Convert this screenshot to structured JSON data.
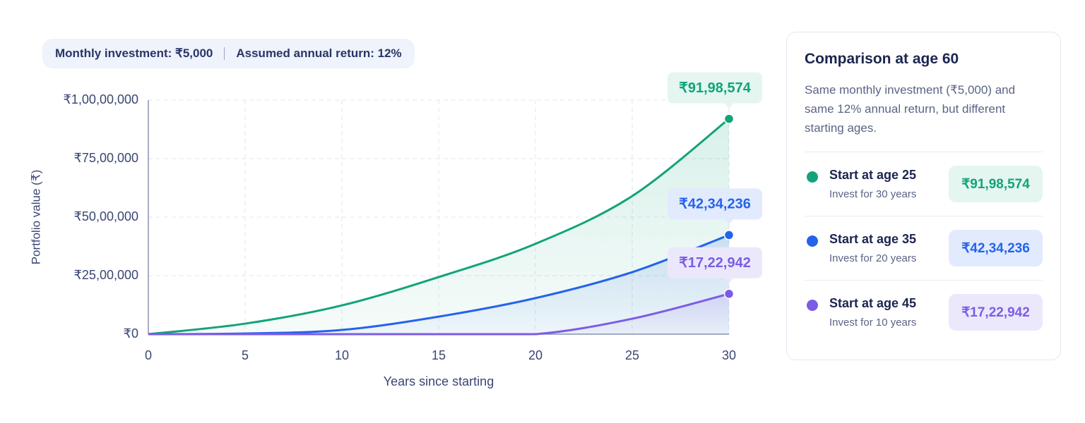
{
  "header": {
    "items": [
      "Monthly investment: ₹5,000",
      "Assumed annual return: 12%"
    ]
  },
  "chart_data": {
    "type": "line",
    "x": [
      0,
      5,
      10,
      15,
      20,
      25,
      30
    ],
    "xlim": [
      0,
      30
    ],
    "xticks": [
      0,
      5,
      10,
      15,
      20,
      25,
      30
    ],
    "ylim": [
      0,
      10000000
    ],
    "yticks": [
      {
        "value": 0,
        "label": "₹0"
      },
      {
        "value": 2500000,
        "label": "₹25,00,000"
      },
      {
        "value": 5000000,
        "label": "₹50,00,000"
      },
      {
        "value": 7500000,
        "label": "₹75,00,000"
      },
      {
        "value": 10000000,
        "label": "₹1,00,00,000"
      }
    ],
    "x_label": "Years since starting",
    "y_label": "Portfolio value (₹)",
    "grid": true,
    "series": [
      {
        "name": "Start at age 25",
        "color": "#12a37a",
        "values": [
          0,
          450000,
          1230000,
          2440000,
          3860000,
          5900000,
          9198574
        ],
        "value_labels": [
          null,
          null,
          null,
          null,
          null,
          null,
          "₹91,98,574"
        ]
      },
      {
        "name": "Start at age 35",
        "color": "#2563eb",
        "values": [
          0,
          30000,
          180000,
          750000,
          1540000,
          2650000,
          4234236
        ],
        "value_labels": [
          null,
          null,
          null,
          null,
          null,
          null,
          "₹42,34,236"
        ]
      },
      {
        "name": "Start at age 45",
        "color": "#7c5ce6",
        "values": [
          0,
          0,
          0,
          0,
          0,
          660000,
          1722942
        ],
        "value_labels": [
          null,
          null,
          null,
          null,
          null,
          null,
          "₹17,22,942"
        ]
      }
    ]
  },
  "panel": {
    "title": "Comparison at age 60",
    "description": "Same monthly investment (₹5,000) and same 12% annual return, but different starting ages.",
    "items": [
      {
        "detail": "Invest for 30 years"
      },
      {
        "detail": "Invest for 20 years"
      },
      {
        "detail": "Invest for 10 years"
      }
    ]
  }
}
